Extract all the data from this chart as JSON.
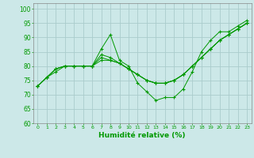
{
  "title": "",
  "xlabel": "Humidité relative (%)",
  "ylabel": "",
  "background_color": "#cce8e8",
  "grid_color": "#aacccc",
  "line_color": "#009900",
  "xlim": [
    -0.5,
    23.5
  ],
  "ylim": [
    60,
    102
  ],
  "yticks": [
    60,
    65,
    70,
    75,
    80,
    85,
    90,
    95,
    100
  ],
  "xticks": [
    0,
    1,
    2,
    3,
    4,
    5,
    6,
    7,
    8,
    9,
    10,
    11,
    12,
    13,
    14,
    15,
    16,
    17,
    18,
    19,
    20,
    21,
    22,
    23
  ],
  "series": [
    [
      73,
      76,
      78,
      80,
      80,
      80,
      80,
      86,
      91,
      82,
      80,
      74,
      71,
      68,
      69,
      69,
      72,
      78,
      85,
      89,
      92,
      92,
      94,
      96
    ],
    [
      73,
      76,
      79,
      80,
      80,
      80,
      80,
      84,
      83,
      81,
      79,
      77,
      75,
      74,
      74,
      75,
      77,
      80,
      83,
      86,
      89,
      91,
      93,
      95
    ],
    [
      73,
      76,
      79,
      80,
      80,
      80,
      80,
      83,
      82,
      81,
      79,
      77,
      75,
      74,
      74,
      75,
      77,
      80,
      83,
      86,
      89,
      91,
      93,
      95
    ],
    [
      73,
      76,
      79,
      80,
      80,
      80,
      80,
      82,
      82,
      81,
      79,
      77,
      75,
      74,
      74,
      75,
      77,
      80,
      83,
      86,
      89,
      91,
      93,
      95
    ]
  ]
}
